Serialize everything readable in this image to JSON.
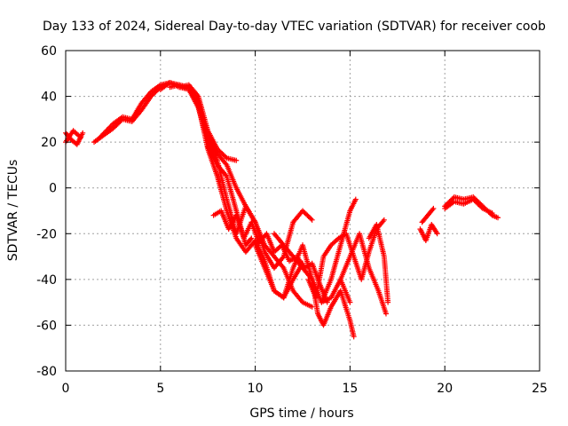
{
  "chart_data": {
    "type": "scatter",
    "title": "Day 133 of 2024, Sidereal Day-to-day VTEC variation (SDTVAR) for receiver coob",
    "xlabel": "GPS time / hours",
    "ylabel": "SDTVAR / TECUs",
    "xlim": [
      0,
      25
    ],
    "ylim": [
      -80,
      60
    ],
    "xticks": [
      0,
      5,
      10,
      15,
      20,
      25
    ],
    "yticks": [
      -80,
      -60,
      -40,
      -20,
      0,
      20,
      40,
      60
    ],
    "grid": true,
    "legend": "none",
    "marker": "+",
    "colors": {
      "series": "#ff0000",
      "grid": "#a0a0a0",
      "axis": "#000000"
    },
    "series": [
      {
        "name": "t1",
        "x": [
          0,
          0.3,
          0.6,
          0.9
        ],
        "y": [
          24,
          21,
          19,
          24
        ]
      },
      {
        "name": "t2",
        "x": [
          0,
          0.4,
          0.8
        ],
        "y": [
          20,
          25,
          22
        ]
      },
      {
        "name": "t3",
        "x": [
          1.5,
          2.5,
          3,
          3.5,
          4,
          4.5,
          5,
          5.5,
          6,
          6.5,
          7,
          7.5,
          8,
          8.5,
          9
        ],
        "y": [
          20,
          26,
          30,
          29,
          34,
          40,
          44,
          46,
          44,
          45,
          40,
          25,
          17,
          13,
          12
        ]
      },
      {
        "name": "t4",
        "x": [
          1.8,
          2.5,
          3,
          3.5,
          4,
          4.5,
          5,
          5.5,
          6,
          6.5,
          7,
          7.5,
          8,
          8.5,
          9,
          9.5,
          10,
          10.5,
          11,
          11.5,
          12,
          12.5,
          13
        ],
        "y": [
          22,
          28,
          31,
          30,
          37,
          42,
          45,
          46,
          45,
          43,
          35,
          20,
          12,
          -5,
          -20,
          -8,
          -15,
          -28,
          -35,
          -30,
          -15,
          -10,
          -14
        ]
      },
      {
        "name": "t5",
        "x": [
          5,
          5.5,
          6,
          6.5,
          7,
          7.5,
          8,
          8.5,
          9,
          9.5,
          10,
          10.5,
          11,
          11.5,
          12,
          12.5
        ],
        "y": [
          43,
          46,
          44,
          43,
          36,
          17,
          5,
          -10,
          -22,
          -28,
          -23,
          -32,
          -45,
          -48,
          -40,
          -33
        ]
      },
      {
        "name": "t6",
        "x": [
          5.5,
          6,
          6.5,
          7,
          7.5,
          8,
          8.5,
          9,
          9.5,
          10,
          10.5,
          11,
          11.5,
          12,
          12.5,
          13
        ],
        "y": [
          44,
          45,
          44,
          38,
          22,
          15,
          10,
          0,
          -8,
          -15,
          -25,
          -30,
          -35,
          -45,
          -50,
          -52
        ]
      },
      {
        "name": "t7",
        "x": [
          7.5,
          8,
          8.5,
          9,
          9.5,
          9.8
        ],
        "y": [
          18,
          10,
          5,
          -10,
          -25,
          -22
        ]
      },
      {
        "name": "t8",
        "x": [
          7.8,
          8.2,
          8.6,
          9,
          9.4,
          9.8,
          10.2,
          10.6,
          11,
          11.4,
          11.8,
          12.2,
          12.6,
          13,
          13.4,
          13.8
        ],
        "y": [
          -12,
          -10,
          -18,
          -12,
          -22,
          -15,
          -24,
          -20,
          -28,
          -25,
          -32,
          -30,
          -35,
          -33,
          -42,
          -50
        ]
      },
      {
        "name": "t9",
        "x": [
          10,
          10.5,
          11,
          11.5,
          12,
          12.5,
          13,
          13.5,
          14,
          14.5,
          15
        ],
        "y": [
          -25,
          -35,
          -45,
          -48,
          -35,
          -25,
          -40,
          -50,
          -48,
          -40,
          -50
        ]
      },
      {
        "name": "t10",
        "x": [
          11,
          11.5,
          12,
          12.5,
          13,
          13.3,
          13.6,
          14,
          14.5,
          15,
          15.2
        ],
        "y": [
          -20,
          -25,
          -30,
          -35,
          -40,
          -55,
          -60,
          -52,
          -45,
          -58,
          -65
        ]
      },
      {
        "name": "t11",
        "x": [
          12.8,
          13.2,
          13.6,
          14,
          14.4,
          14.8,
          15.2,
          15.6,
          16,
          16.4,
          16.8
        ],
        "y": [
          -40,
          -48,
          -30,
          -25,
          -22,
          -20,
          -30,
          -40,
          -28,
          -18,
          -14
        ]
      },
      {
        "name": "t12",
        "x": [
          13.5,
          14,
          14.5,
          15,
          15.3
        ],
        "y": [
          -50,
          -40,
          -25,
          -10,
          -5
        ]
      },
      {
        "name": "t13",
        "x": [
          14.5,
          15,
          15.5,
          16,
          16.5,
          16.9
        ],
        "y": [
          -40,
          -30,
          -20,
          -35,
          -45,
          -55
        ]
      },
      {
        "name": "t14",
        "x": [
          16,
          16.4,
          16.8,
          17
        ],
        "y": [
          -22,
          -16,
          -30,
          -50
        ]
      },
      {
        "name": "t15",
        "x": [
          18.7,
          19,
          19.3,
          19.6
        ],
        "y": [
          -18,
          -23,
          -16,
          -20
        ]
      },
      {
        "name": "t16",
        "x": [
          18.8,
          19.1,
          19.4
        ],
        "y": [
          -15,
          -12,
          -9
        ]
      },
      {
        "name": "t17",
        "x": [
          20,
          20.5,
          21,
          21.5,
          22,
          22.5,
          22.8
        ],
        "y": [
          -8,
          -4,
          -5,
          -4,
          -8,
          -12,
          -13
        ]
      },
      {
        "name": "t18",
        "x": [
          20,
          20.5,
          21,
          21.5,
          22,
          22.5
        ],
        "y": [
          -9,
          -6,
          -7,
          -5,
          -9,
          -11
        ]
      }
    ]
  }
}
